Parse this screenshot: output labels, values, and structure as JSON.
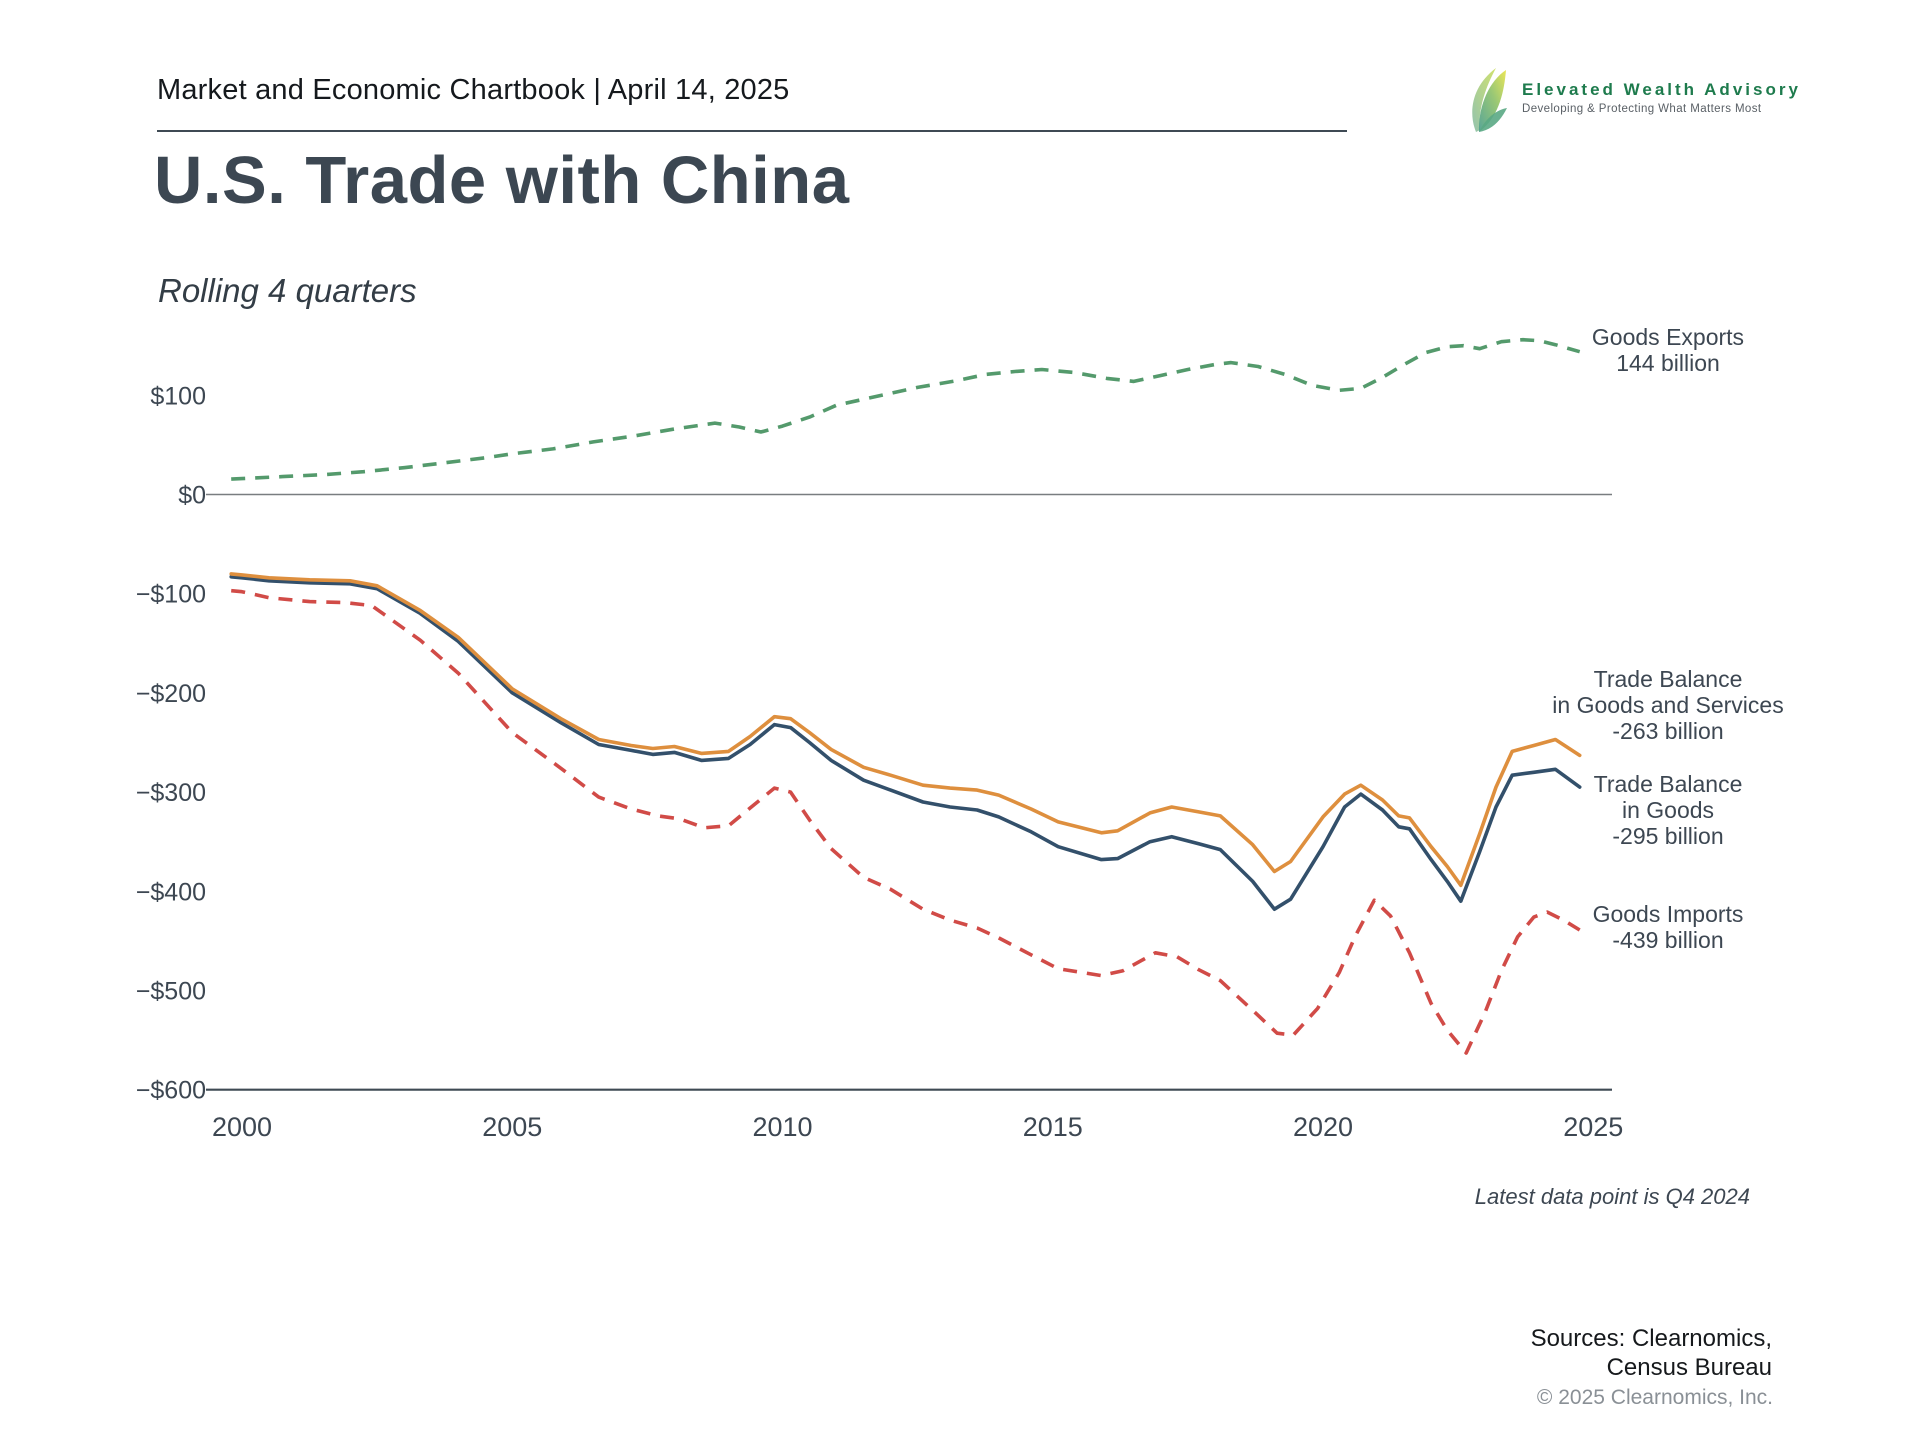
{
  "header": {
    "chartbook_title": "Market and Economic Chartbook | April 14, 2025"
  },
  "logo": {
    "name": "Elevated Wealth Advisory",
    "tagline": "Developing & Protecting What Matters Most"
  },
  "title": "U.S. Trade with China",
  "subtitle": "Rolling 4 quarters",
  "footnote": "Latest data point is Q4 2024",
  "sources": {
    "line1": "Sources: Clearnomics,",
    "line2": "Census Bureau",
    "copyright": "© 2025 Clearnomics, Inc."
  },
  "chart_data": {
    "type": "line",
    "title": "U.S. Trade with China, rolling 4 quarters, billions of USD",
    "x_axis": {
      "range": [
        1999.7,
        2025.6
      ],
      "ticks": [
        {
          "value": 2000,
          "label": "2000"
        },
        {
          "value": 2005,
          "label": "2005"
        },
        {
          "value": 2010,
          "label": "2010"
        },
        {
          "value": 2015,
          "label": "2015"
        },
        {
          "value": 2020,
          "label": "2020"
        },
        {
          "value": 2025,
          "label": "2025"
        }
      ]
    },
    "y_axis": {
      "units": "billions of USD",
      "range": [
        -600,
        160
      ],
      "ticks": [
        {
          "value": 100,
          "label": "$100"
        },
        {
          "value": 0,
          "label": "$0"
        },
        {
          "value": -100,
          "label": "−$100"
        },
        {
          "value": -200,
          "label": "−$200"
        },
        {
          "value": -300,
          "label": "−$300"
        },
        {
          "value": -400,
          "label": "−$400"
        },
        {
          "value": -500,
          "label": "−$500"
        },
        {
          "value": -600,
          "label": "−$600"
        }
      ]
    },
    "zero_line_color": "#797d80",
    "axis_line_color": "#3f4a54",
    "series": [
      {
        "id": "goods-exports",
        "name": "Goods Exports",
        "legend_lines": [
          "Goods Exports",
          "144 billion"
        ],
        "latest_value": 144,
        "color": "#549a6c",
        "dashed": true,
        "points": [
          [
            1999.8,
            15.5
          ],
          [
            2000,
            16
          ],
          [
            2000.75,
            18
          ],
          [
            2001.5,
            20
          ],
          [
            2002.25,
            23
          ],
          [
            2003,
            27
          ],
          [
            2003.75,
            32
          ],
          [
            2004.5,
            37
          ],
          [
            2005,
            41
          ],
          [
            2005.75,
            46
          ],
          [
            2006.5,
            53
          ],
          [
            2007.25,
            59
          ],
          [
            2008,
            66
          ],
          [
            2008.75,
            72
          ],
          [
            2009.2,
            68
          ],
          [
            2009.6,
            63
          ],
          [
            2010,
            69
          ],
          [
            2010.5,
            78
          ],
          [
            2011,
            90
          ],
          [
            2011.75,
            99
          ],
          [
            2012.5,
            108
          ],
          [
            2013.25,
            115
          ],
          [
            2013.75,
            121
          ],
          [
            2014.3,
            124
          ],
          [
            2014.8,
            126
          ],
          [
            2015.4,
            123
          ],
          [
            2016,
            117
          ],
          [
            2016.5,
            114
          ],
          [
            2017,
            120
          ],
          [
            2017.5,
            126
          ],
          [
            2018,
            131
          ],
          [
            2018.3,
            133
          ],
          [
            2018.8,
            129
          ],
          [
            2019.3,
            121
          ],
          [
            2019.8,
            110
          ],
          [
            2020.3,
            105
          ],
          [
            2020.7,
            107
          ],
          [
            2021.1,
            118
          ],
          [
            2021.5,
            131
          ],
          [
            2021.9,
            143
          ],
          [
            2022.3,
            149
          ],
          [
            2022.6,
            150
          ],
          [
            2022.9,
            147
          ],
          [
            2023.3,
            154
          ],
          [
            2023.7,
            156
          ],
          [
            2024,
            155
          ],
          [
            2024.3,
            151
          ],
          [
            2024.75,
            144
          ]
        ]
      },
      {
        "id": "trade-balance-goods",
        "name": "Trade Balance in Goods",
        "legend_lines": [
          "Trade Balance",
          "in Goods",
          "-295 billion"
        ],
        "latest_value": -295,
        "color": "#33506b",
        "dashed": false,
        "points": [
          [
            1999.8,
            -83
          ],
          [
            2000,
            -84
          ],
          [
            2000.5,
            -87
          ],
          [
            2001.25,
            -89
          ],
          [
            2002,
            -90
          ],
          [
            2002.5,
            -95
          ],
          [
            2003.3,
            -120
          ],
          [
            2004,
            -148
          ],
          [
            2005,
            -200
          ],
          [
            2005.9,
            -230
          ],
          [
            2006.6,
            -252
          ],
          [
            2007.2,
            -258
          ],
          [
            2007.6,
            -262
          ],
          [
            2008,
            -260
          ],
          [
            2008.5,
            -268
          ],
          [
            2009,
            -266
          ],
          [
            2009.4,
            -252
          ],
          [
            2009.85,
            -232
          ],
          [
            2010.15,
            -235
          ],
          [
            2010.5,
            -250
          ],
          [
            2010.9,
            -268
          ],
          [
            2011.5,
            -288
          ],
          [
            2012,
            -298
          ],
          [
            2012.6,
            -310
          ],
          [
            2013.1,
            -315
          ],
          [
            2013.6,
            -318
          ],
          [
            2014,
            -325
          ],
          [
            2014.6,
            -340
          ],
          [
            2015.1,
            -355
          ],
          [
            2015.9,
            -368
          ],
          [
            2016.2,
            -367
          ],
          [
            2016.8,
            -350
          ],
          [
            2017.2,
            -345
          ],
          [
            2017.7,
            -352
          ],
          [
            2018.1,
            -358
          ],
          [
            2018.7,
            -390
          ],
          [
            2019.1,
            -418
          ],
          [
            2019.4,
            -408
          ],
          [
            2020,
            -355
          ],
          [
            2020.4,
            -315
          ],
          [
            2020.7,
            -302
          ],
          [
            2021.1,
            -318
          ],
          [
            2021.4,
            -335
          ],
          [
            2021.6,
            -337
          ],
          [
            2022,
            -368
          ],
          [
            2022.3,
            -390
          ],
          [
            2022.55,
            -410
          ],
          [
            2022.9,
            -360
          ],
          [
            2023.2,
            -315
          ],
          [
            2023.5,
            -283
          ],
          [
            2023.9,
            -280
          ],
          [
            2024.3,
            -277
          ],
          [
            2024.75,
            -295
          ]
        ]
      },
      {
        "id": "trade-balance-goods-services",
        "name": "Trade Balance in Goods and Services",
        "legend_lines": [
          "Trade Balance",
          "in Goods and Services",
          "-263 billion"
        ],
        "latest_value": -263,
        "color": "#de8f3e",
        "dashed": false,
        "points": [
          [
            1999.8,
            -80
          ],
          [
            2000,
            -81
          ],
          [
            2000.5,
            -84
          ],
          [
            2001.25,
            -86
          ],
          [
            2002,
            -87
          ],
          [
            2002.5,
            -92
          ],
          [
            2003.3,
            -117
          ],
          [
            2004,
            -144
          ],
          [
            2005,
            -196
          ],
          [
            2005.9,
            -226
          ],
          [
            2006.6,
            -247
          ],
          [
            2007.2,
            -253
          ],
          [
            2007.6,
            -256
          ],
          [
            2008,
            -254
          ],
          [
            2008.5,
            -261
          ],
          [
            2009,
            -259
          ],
          [
            2009.4,
            -244
          ],
          [
            2009.85,
            -224
          ],
          [
            2010.15,
            -226
          ],
          [
            2010.5,
            -240
          ],
          [
            2010.9,
            -257
          ],
          [
            2011.5,
            -275
          ],
          [
            2012,
            -283
          ],
          [
            2012.6,
            -293
          ],
          [
            2013.1,
            -296
          ],
          [
            2013.6,
            -298
          ],
          [
            2014,
            -303
          ],
          [
            2014.6,
            -317
          ],
          [
            2015.1,
            -330
          ],
          [
            2015.9,
            -341
          ],
          [
            2016.2,
            -339
          ],
          [
            2016.8,
            -321
          ],
          [
            2017.2,
            -315
          ],
          [
            2017.7,
            -320
          ],
          [
            2018.1,
            -324
          ],
          [
            2018.7,
            -353
          ],
          [
            2019.1,
            -380
          ],
          [
            2019.4,
            -370
          ],
          [
            2020,
            -325
          ],
          [
            2020.4,
            -302
          ],
          [
            2020.7,
            -293
          ],
          [
            2021.1,
            -308
          ],
          [
            2021.4,
            -324
          ],
          [
            2021.6,
            -326
          ],
          [
            2022,
            -355
          ],
          [
            2022.3,
            -375
          ],
          [
            2022.55,
            -394
          ],
          [
            2022.9,
            -342
          ],
          [
            2023.2,
            -295
          ],
          [
            2023.5,
            -259
          ],
          [
            2023.9,
            -253
          ],
          [
            2024.3,
            -247
          ],
          [
            2024.75,
            -263
          ]
        ]
      },
      {
        "id": "goods-imports",
        "name": "Goods Imports",
        "legend_lines": [
          "Goods Imports",
          "-439 billion"
        ],
        "latest_value": -439,
        "color": "#d14b47",
        "dashed": true,
        "points": [
          [
            1999.8,
            -97
          ],
          [
            2000,
            -98
          ],
          [
            2000.5,
            -104
          ],
          [
            2001.25,
            -108
          ],
          [
            2001.9,
            -109
          ],
          [
            2002.4,
            -112
          ],
          [
            2003.3,
            -147
          ],
          [
            2004,
            -180
          ],
          [
            2005,
            -240
          ],
          [
            2005.9,
            -276
          ],
          [
            2006.6,
            -305
          ],
          [
            2007.2,
            -317
          ],
          [
            2007.7,
            -324
          ],
          [
            2008.1,
            -327
          ],
          [
            2008.55,
            -336
          ],
          [
            2009,
            -334
          ],
          [
            2009.4,
            -316
          ],
          [
            2009.85,
            -296
          ],
          [
            2010.15,
            -300
          ],
          [
            2010.5,
            -328
          ],
          [
            2010.9,
            -357
          ],
          [
            2011.5,
            -386
          ],
          [
            2012,
            -398
          ],
          [
            2012.6,
            -418
          ],
          [
            2013.1,
            -429
          ],
          [
            2013.6,
            -437
          ],
          [
            2014,
            -447
          ],
          [
            2014.6,
            -464
          ],
          [
            2015.1,
            -478
          ],
          [
            2015.9,
            -485
          ],
          [
            2016.3,
            -480
          ],
          [
            2016.9,
            -462
          ],
          [
            2017.3,
            -466
          ],
          [
            2017.7,
            -479
          ],
          [
            2018.1,
            -490
          ],
          [
            2018.7,
            -520
          ],
          [
            2019.15,
            -543
          ],
          [
            2019.45,
            -545
          ],
          [
            2019.9,
            -518
          ],
          [
            2020.3,
            -482
          ],
          [
            2020.6,
            -445
          ],
          [
            2020.95,
            -409
          ],
          [
            2021.25,
            -425
          ],
          [
            2021.6,
            -462
          ],
          [
            2022,
            -513
          ],
          [
            2022.3,
            -540
          ],
          [
            2022.65,
            -563
          ],
          [
            2023,
            -522
          ],
          [
            2023.3,
            -480
          ],
          [
            2023.6,
            -446
          ],
          [
            2023.9,
            -426
          ],
          [
            2024.15,
            -421
          ],
          [
            2024.45,
            -429
          ],
          [
            2024.75,
            -439
          ]
        ]
      }
    ]
  }
}
